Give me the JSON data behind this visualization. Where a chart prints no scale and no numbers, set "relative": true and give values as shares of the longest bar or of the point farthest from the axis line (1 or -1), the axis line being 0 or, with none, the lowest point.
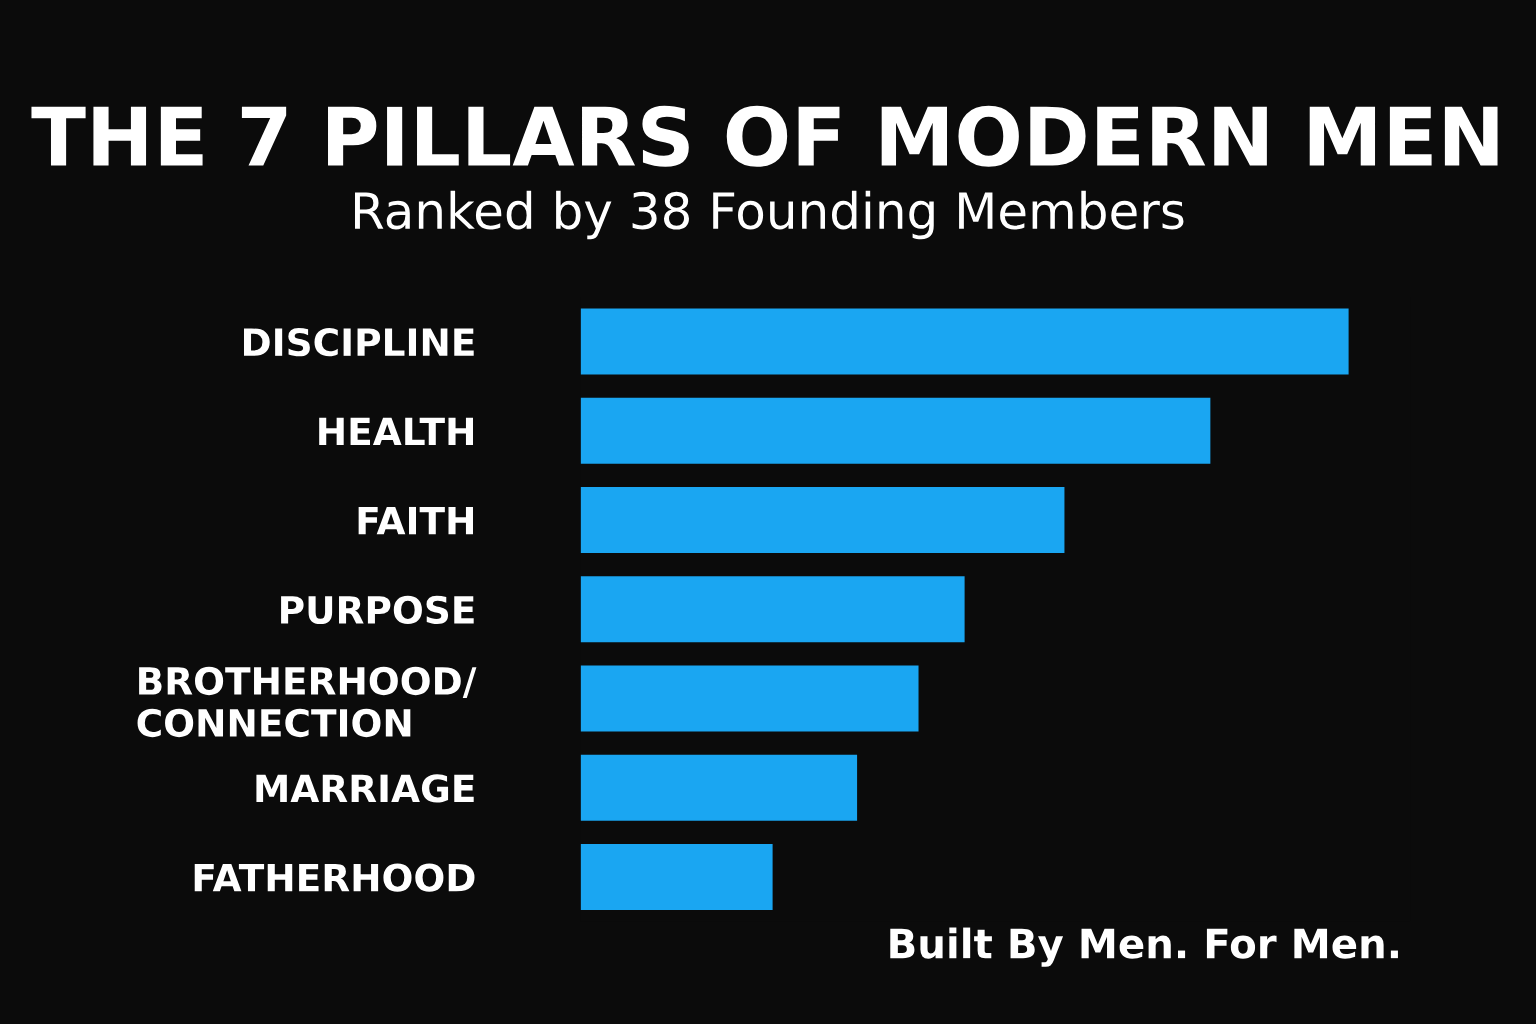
{
  "chart_data": {
    "type": "bar",
    "orientation": "horizontal",
    "relative": true,
    "title": "THE 7 PILLARS OF MODERN MEN",
    "subtitle": "Ranked by 38 Founding Members",
    "categories": [
      "DISCIPLINE",
      "HEALTH",
      "FAITH",
      "PURPOSE",
      "BROTHERHOOD/\nCONNECTION",
      "MARRIAGE",
      "FATHERHOOD"
    ],
    "values": [
      1,
      0.82,
      0.63,
      0.5,
      0.44,
      0.36,
      0.25
    ],
    "color": "#1aa6f2",
    "annotations": [
      "Built By Men. For Men."
    ],
    "grid": false,
    "legend": false
  }
}
